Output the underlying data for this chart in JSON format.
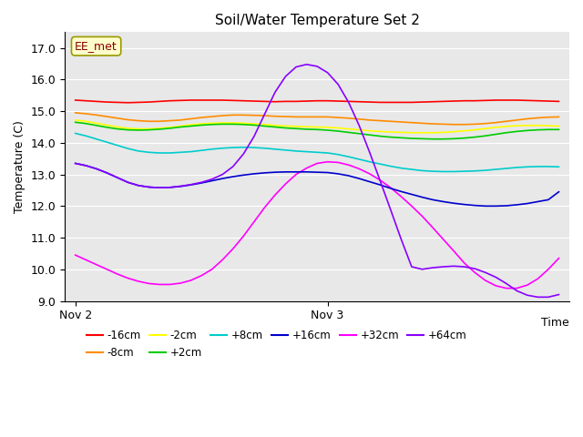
{
  "title": "Soil/Water Temperature Set 2",
  "ylabel": "Temperature (C)",
  "xlabel": "Time",
  "annotation": "EE_met",
  "yticks": [
    9.0,
    10.0,
    11.0,
    12.0,
    13.0,
    14.0,
    15.0,
    16.0,
    17.0
  ],
  "ylim": [
    9.0,
    17.5
  ],
  "xtick_labels": [
    "Nov 2",
    "Nov 3"
  ],
  "xtick_positions": [
    0.0,
    24.0
  ],
  "xlim": [
    -1.0,
    47.0
  ],
  "bg_color": "#e8e8e8",
  "series": {
    "-16cm": {
      "color": "#ff0000",
      "data_x": [
        0,
        1,
        2,
        3,
        4,
        5,
        6,
        7,
        8,
        9,
        10,
        11,
        12,
        13,
        14,
        15,
        16,
        17,
        18,
        19,
        20,
        21,
        22,
        23,
        24,
        25,
        26,
        27,
        28,
        29,
        30,
        31,
        32,
        33,
        34,
        35,
        36,
        37,
        38,
        39,
        40,
        41,
        42,
        43,
        44,
        45,
        46
      ],
      "data_y": [
        15.35,
        15.33,
        15.31,
        15.29,
        15.28,
        15.27,
        15.28,
        15.29,
        15.31,
        15.33,
        15.34,
        15.35,
        15.35,
        15.35,
        15.35,
        15.34,
        15.33,
        15.32,
        15.31,
        15.3,
        15.31,
        15.31,
        15.32,
        15.33,
        15.33,
        15.32,
        15.31,
        15.3,
        15.29,
        15.28,
        15.28,
        15.28,
        15.28,
        15.29,
        15.3,
        15.31,
        15.32,
        15.33,
        15.33,
        15.34,
        15.35,
        15.35,
        15.35,
        15.34,
        15.33,
        15.32,
        15.31
      ]
    },
    "-8cm": {
      "color": "#ff8c00",
      "data_x": [
        0,
        1,
        2,
        3,
        4,
        5,
        6,
        7,
        8,
        9,
        10,
        11,
        12,
        13,
        14,
        15,
        16,
        17,
        18,
        19,
        20,
        21,
        22,
        23,
        24,
        25,
        26,
        27,
        28,
        29,
        30,
        31,
        32,
        33,
        34,
        35,
        36,
        37,
        38,
        39,
        40,
        41,
        42,
        43,
        44,
        45,
        46
      ],
      "data_y": [
        14.95,
        14.92,
        14.88,
        14.83,
        14.78,
        14.73,
        14.7,
        14.68,
        14.68,
        14.7,
        14.72,
        14.76,
        14.8,
        14.83,
        14.86,
        14.88,
        14.88,
        14.87,
        14.86,
        14.84,
        14.83,
        14.82,
        14.82,
        14.82,
        14.82,
        14.8,
        14.78,
        14.75,
        14.72,
        14.7,
        14.68,
        14.66,
        14.64,
        14.62,
        14.6,
        14.59,
        14.58,
        14.58,
        14.59,
        14.61,
        14.64,
        14.68,
        14.72,
        14.76,
        14.79,
        14.81,
        14.82
      ]
    },
    "-2cm": {
      "color": "#ffff00",
      "data_x": [
        0,
        1,
        2,
        3,
        4,
        5,
        6,
        7,
        8,
        9,
        10,
        11,
        12,
        13,
        14,
        15,
        16,
        17,
        18,
        19,
        20,
        21,
        22,
        23,
        24,
        25,
        26,
        27,
        28,
        29,
        30,
        31,
        32,
        33,
        34,
        35,
        36,
        37,
        38,
        39,
        40,
        41,
        42,
        43,
        44,
        45,
        46
      ],
      "data_y": [
        14.72,
        14.68,
        14.62,
        14.56,
        14.5,
        14.46,
        14.44,
        14.44,
        14.46,
        14.49,
        14.53,
        14.57,
        14.6,
        14.62,
        14.63,
        14.63,
        14.62,
        14.6,
        14.58,
        14.55,
        14.53,
        14.52,
        14.51,
        14.5,
        14.49,
        14.47,
        14.44,
        14.41,
        14.38,
        14.36,
        14.34,
        14.33,
        14.32,
        14.32,
        14.32,
        14.33,
        14.35,
        14.38,
        14.41,
        14.45,
        14.49,
        14.52,
        14.54,
        14.55,
        14.55,
        14.54,
        14.53
      ]
    },
    "+2cm": {
      "color": "#00cc00",
      "data_x": [
        0,
        1,
        2,
        3,
        4,
        5,
        6,
        7,
        8,
        9,
        10,
        11,
        12,
        13,
        14,
        15,
        16,
        17,
        18,
        19,
        20,
        21,
        22,
        23,
        24,
        25,
        26,
        27,
        28,
        29,
        30,
        31,
        32,
        33,
        34,
        35,
        36,
        37,
        38,
        39,
        40,
        41,
        42,
        43,
        44,
        45,
        46
      ],
      "data_y": [
        14.65,
        14.61,
        14.55,
        14.49,
        14.44,
        14.41,
        14.4,
        14.41,
        14.43,
        14.46,
        14.5,
        14.53,
        14.56,
        14.58,
        14.59,
        14.59,
        14.58,
        14.56,
        14.53,
        14.5,
        14.47,
        14.45,
        14.43,
        14.42,
        14.4,
        14.37,
        14.33,
        14.29,
        14.25,
        14.21,
        14.18,
        14.16,
        14.14,
        14.13,
        14.12,
        14.12,
        14.13,
        14.15,
        14.18,
        14.22,
        14.27,
        14.32,
        14.36,
        14.39,
        14.41,
        14.42,
        14.42
      ]
    },
    "+8cm": {
      "color": "#00cccc",
      "data_x": [
        0,
        1,
        2,
        3,
        4,
        5,
        6,
        7,
        8,
        9,
        10,
        11,
        12,
        13,
        14,
        15,
        16,
        17,
        18,
        19,
        20,
        21,
        22,
        23,
        24,
        25,
        26,
        27,
        28,
        29,
        30,
        31,
        32,
        33,
        34,
        35,
        36,
        37,
        38,
        39,
        40,
        41,
        42,
        43,
        44,
        45,
        46
      ],
      "data_y": [
        14.3,
        14.22,
        14.12,
        14.02,
        13.92,
        13.82,
        13.74,
        13.7,
        13.68,
        13.68,
        13.7,
        13.72,
        13.76,
        13.8,
        13.83,
        13.85,
        13.86,
        13.85,
        13.83,
        13.8,
        13.77,
        13.74,
        13.72,
        13.7,
        13.68,
        13.63,
        13.56,
        13.48,
        13.4,
        13.33,
        13.26,
        13.2,
        13.16,
        13.12,
        13.1,
        13.09,
        13.09,
        13.1,
        13.11,
        13.13,
        13.16,
        13.19,
        13.22,
        13.24,
        13.25,
        13.25,
        13.24
      ]
    },
    "+16cm": {
      "color": "#0000cc",
      "data_x": [
        0,
        1,
        2,
        3,
        4,
        5,
        6,
        7,
        8,
        9,
        10,
        11,
        12,
        13,
        14,
        15,
        16,
        17,
        18,
        19,
        20,
        21,
        22,
        23,
        24,
        25,
        26,
        27,
        28,
        29,
        30,
        31,
        32,
        33,
        34,
        35,
        36,
        37,
        38,
        39,
        40,
        41,
        42,
        43,
        44,
        45,
        46
      ],
      "data_y": [
        13.35,
        13.28,
        13.18,
        13.05,
        12.9,
        12.75,
        12.65,
        12.6,
        12.58,
        12.59,
        12.62,
        12.67,
        12.73,
        12.8,
        12.87,
        12.93,
        12.98,
        13.02,
        13.05,
        13.07,
        13.08,
        13.08,
        13.08,
        13.07,
        13.06,
        13.02,
        12.96,
        12.87,
        12.77,
        12.67,
        12.56,
        12.46,
        12.37,
        12.28,
        12.2,
        12.14,
        12.09,
        12.05,
        12.02,
        12.0,
        12.0,
        12.01,
        12.04,
        12.08,
        12.14,
        12.2,
        12.45
      ]
    },
    "+32cm": {
      "color": "#ff00ff",
      "data_x": [
        0,
        1,
        2,
        3,
        4,
        5,
        6,
        7,
        8,
        9,
        10,
        11,
        12,
        13,
        14,
        15,
        16,
        17,
        18,
        19,
        20,
        21,
        22,
        23,
        24,
        25,
        26,
        27,
        28,
        29,
        30,
        31,
        32,
        33,
        34,
        35,
        36,
        37,
        38,
        39,
        40,
        41,
        42,
        43,
        44,
        45,
        46
      ],
      "data_y": [
        10.45,
        10.3,
        10.15,
        10.0,
        9.85,
        9.72,
        9.62,
        9.55,
        9.52,
        9.52,
        9.56,
        9.65,
        9.8,
        10.0,
        10.3,
        10.65,
        11.05,
        11.5,
        11.95,
        12.35,
        12.7,
        13.0,
        13.2,
        13.35,
        13.4,
        13.38,
        13.3,
        13.18,
        13.02,
        12.82,
        12.58,
        12.3,
        12.0,
        11.68,
        11.32,
        10.95,
        10.58,
        10.2,
        9.9,
        9.65,
        9.48,
        9.4,
        9.4,
        9.5,
        9.7,
        10.0,
        10.35
      ]
    },
    "+64cm": {
      "color": "#8800ff",
      "data_x": [
        0,
        1,
        2,
        3,
        4,
        5,
        6,
        7,
        8,
        9,
        10,
        11,
        12,
        13,
        14,
        15,
        16,
        17,
        18,
        19,
        20,
        21,
        22,
        23,
        24,
        25,
        26,
        27,
        28,
        29,
        30,
        31,
        32,
        33,
        34,
        35,
        36,
        37,
        38,
        39,
        40,
        41,
        42,
        43,
        44,
        45,
        46
      ],
      "data_y": [
        13.35,
        13.28,
        13.18,
        13.05,
        12.9,
        12.75,
        12.65,
        12.6,
        12.58,
        12.59,
        12.63,
        12.68,
        12.75,
        12.85,
        13.0,
        13.25,
        13.65,
        14.2,
        14.9,
        15.6,
        16.1,
        16.4,
        16.48,
        16.42,
        16.22,
        15.85,
        15.28,
        14.55,
        13.7,
        12.8,
        11.88,
        10.95,
        10.08,
        10.0,
        10.05,
        10.08,
        10.1,
        10.08,
        10.02,
        9.9,
        9.75,
        9.55,
        9.32,
        9.18,
        9.12,
        9.12,
        9.2
      ]
    }
  },
  "legend_row1": [
    "-16cm",
    "-8cm",
    "-2cm",
    "+2cm",
    "+8cm",
    "+16cm"
  ],
  "legend_row2": [
    "+32cm",
    "+64cm"
  ]
}
